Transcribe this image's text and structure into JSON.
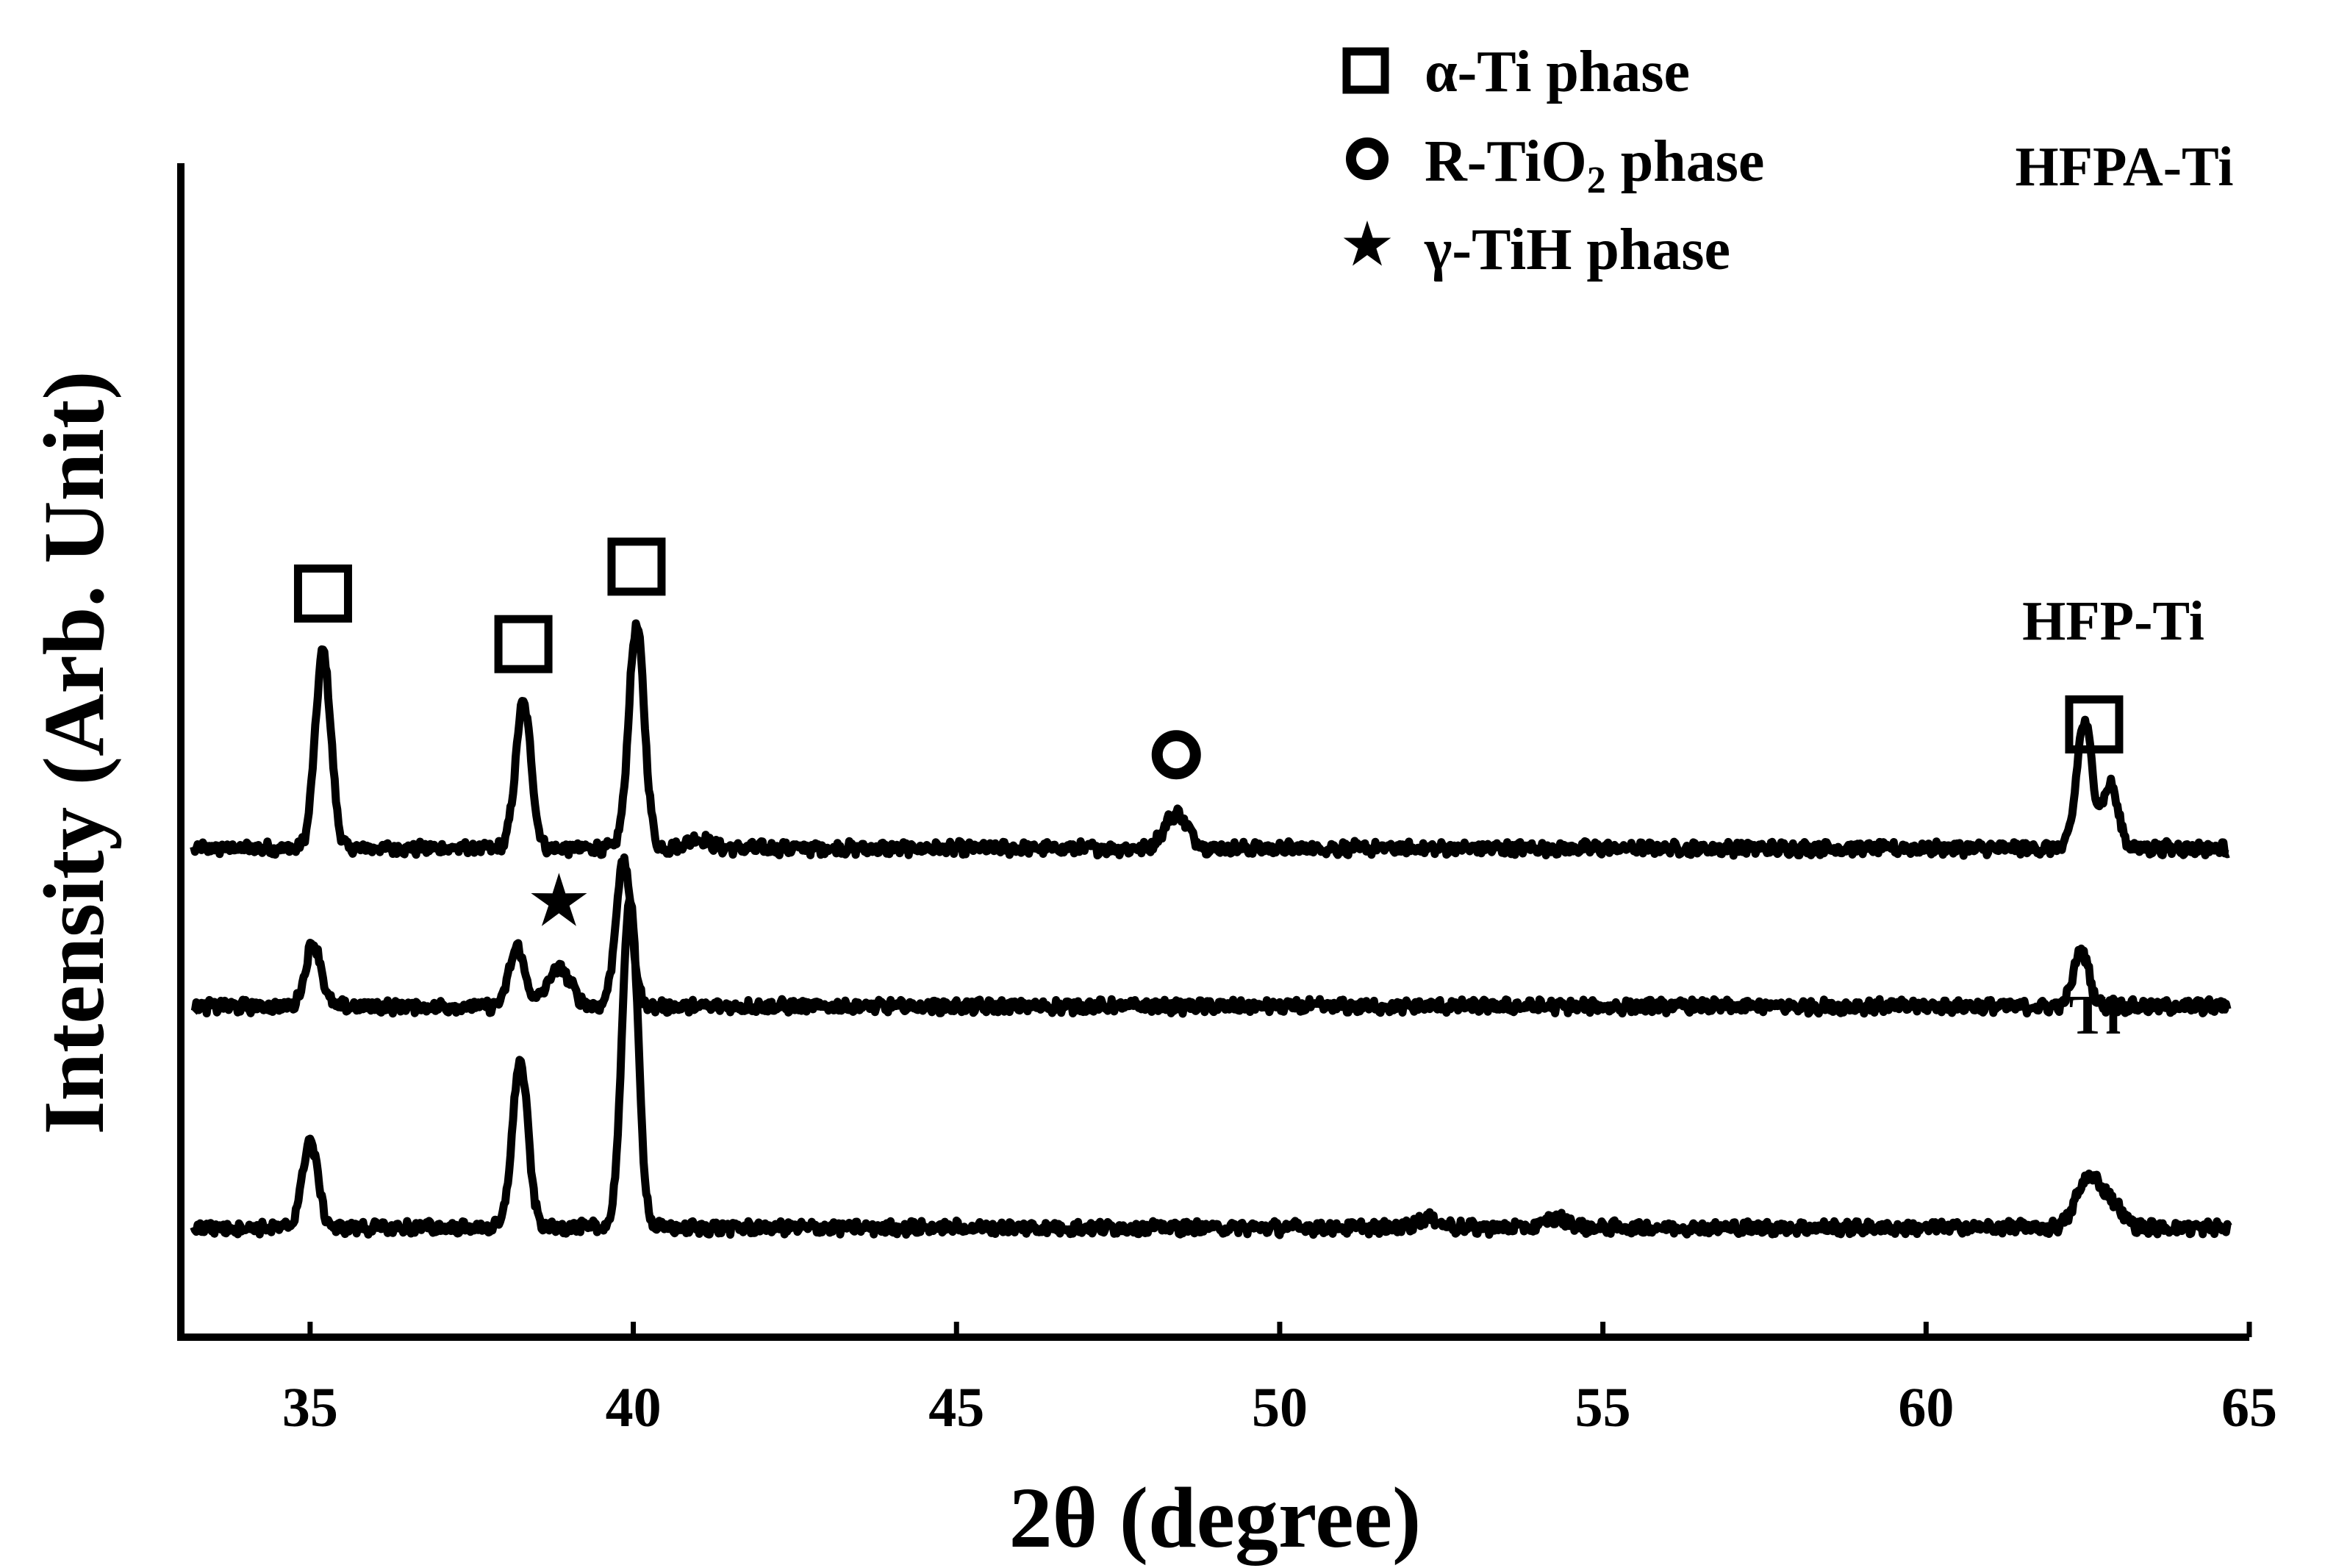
{
  "chart_data": {
    "type": "line",
    "xlabel": "2θ (degree)",
    "ylabel": "Intensity (Arb. Unit)",
    "xlim": [
      33,
      65
    ],
    "x_ticks": [
      35,
      40,
      45,
      50,
      55,
      60,
      65
    ],
    "y_ticks_shown": false,
    "grid": false,
    "legend": {
      "placement": "top-center",
      "entries": [
        {
          "marker": "open-square",
          "text": "α-Ti phase"
        },
        {
          "marker": "open-circle",
          "text": "R-TiO",
          "sub": "2",
          "after": " phase"
        },
        {
          "marker": "star",
          "text": "γ-TiH phase"
        }
      ]
    },
    "series": [
      {
        "name": "HFPA-Ti",
        "baseline": 2.4,
        "peaks": [
          {
            "x": 35.2,
            "height": 1.24
          },
          {
            "x": 38.3,
            "height": 0.92
          },
          {
            "x": 40.05,
            "height": 1.41
          },
          {
            "x": 41.0,
            "height": 0.06
          },
          {
            "x": 48.4,
            "height": 0.22
          },
          {
            "x": 62.45,
            "height": 0.8
          },
          {
            "x": 62.85,
            "height": 0.4
          }
        ]
      },
      {
        "name": "HFP-Ti",
        "baseline": 1.4,
        "peaks": [
          {
            "x": 35.05,
            "height": 0.4
          },
          {
            "x": 38.2,
            "height": 0.37
          },
          {
            "x": 38.85,
            "height": 0.24
          },
          {
            "x": 39.85,
            "height": 0.92
          },
          {
            "x": 62.4,
            "height": 0.35
          }
        ]
      },
      {
        "name": "Ti",
        "baseline": 0.0,
        "peaks": [
          {
            "x": 35.0,
            "height": 0.55
          },
          {
            "x": 38.25,
            "height": 1.05
          },
          {
            "x": 39.95,
            "height": 2.1
          },
          {
            "x": 52.3,
            "height": 0.06
          },
          {
            "x": 54.3,
            "height": 0.06
          },
          {
            "x": 62.5,
            "height": 0.3
          },
          {
            "x": 62.85,
            "height": 0.15
          }
        ]
      }
    ],
    "peak_markers": [
      {
        "type": "open-square",
        "x": 35.2,
        "series": "HFPA-Ti"
      },
      {
        "type": "open-square",
        "x": 38.3,
        "series": "HFPA-Ti"
      },
      {
        "type": "open-square",
        "x": 40.05,
        "series": "HFPA-Ti"
      },
      {
        "type": "open-circle",
        "x": 48.4,
        "series": "HFPA-Ti"
      },
      {
        "type": "open-square",
        "x": 62.6,
        "series": "HFPA-Ti"
      },
      {
        "type": "star",
        "x": 38.85,
        "series": "HFP-Ti"
      }
    ]
  }
}
